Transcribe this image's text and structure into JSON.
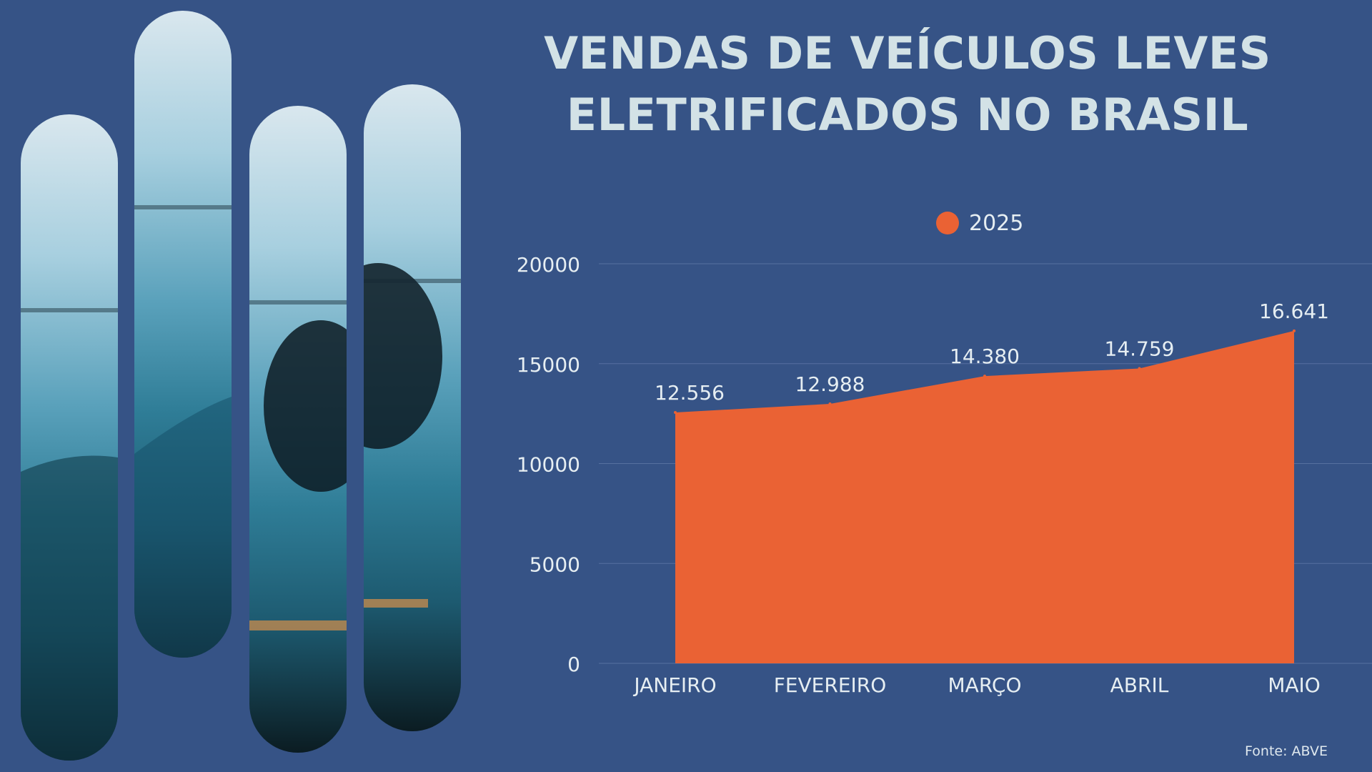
{
  "title_line1": "VENDAS DE VEÍCULOS LEVES",
  "title_line2": "ELETRIFICADOS NO BRASIL",
  "source": "Fonte: ABVE",
  "colors": {
    "background": "#365386",
    "area": "#ea6234",
    "title": "#d3e2e6",
    "text": "#e6eef2",
    "grid": "#5670a0"
  },
  "image_description_icon": "car-photo-strips",
  "chart_data": {
    "type": "area",
    "categories": [
      "JANEIRO",
      "FEVEREIRO",
      "MARÇO",
      "ABRIL",
      "MAIO"
    ],
    "series": [
      {
        "name": "2025",
        "values": [
          12556,
          12988,
          14380,
          14759,
          16641
        ],
        "labels": [
          "12.556",
          "12.988",
          "14.380",
          "14.759",
          "16.641"
        ]
      }
    ],
    "yticks": [
      0,
      5000,
      10000,
      15000,
      20000
    ],
    "ylim": [
      0,
      20000
    ],
    "grid": true,
    "legend_position": "top-center",
    "title": "VENDAS DE VEÍCULOS LEVES ELETRIFICADOS NO BRASIL",
    "xlabel": "",
    "ylabel": ""
  }
}
